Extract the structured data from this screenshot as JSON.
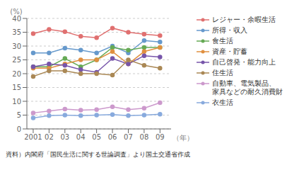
{
  "chart_data": {
    "type": "line",
    "x": [
      2001,
      2002,
      2003,
      2004,
      2005,
      2006,
      2007,
      2008,
      2009
    ],
    "xlim": [
      2000.6,
      2009.7
    ],
    "xticks": [
      2001,
      {
        "value": 2002,
        "label": "02"
      },
      {
        "value": 2003,
        "label": "03"
      },
      {
        "value": 2004,
        "label": "04"
      },
      {
        "value": 2005,
        "label": "05"
      },
      {
        "value": 2006,
        "label": "06"
      },
      {
        "value": 2007,
        "label": "07"
      },
      {
        "value": 2008,
        "label": "08"
      },
      {
        "value": 2009,
        "label": "09"
      }
    ],
    "xlabel": "（年）",
    "ylabel": "(%)",
    "ylim": [
      0,
      40
    ],
    "yticks": [
      0,
      5,
      10,
      15,
      20,
      25,
      30,
      35,
      40
    ],
    "grid": true,
    "legend": "right",
    "marker": "circle",
    "footnote": "資料）内閣府「国民生活に関する世論調査」より国土交通省作成",
    "series": [
      {
        "name": "レジャー・余暇生活",
        "color": "#e07070",
        "values": [
          34.5,
          36.0,
          35.2,
          33.5,
          33.0,
          36.5,
          35.0,
          34.3,
          33.8
        ]
      },
      {
        "name": "所得・収入",
        "color": "#6699cc",
        "values": [
          27.5,
          27.5,
          29.2,
          28.5,
          27.5,
          30.0,
          27.5,
          32.0,
          31.5
        ]
      },
      {
        "name": "食生活",
        "color": "#66aa55",
        "values": [
          22.5,
          22.5,
          25.5,
          22.5,
          25.0,
          29.5,
          28.5,
          29.5,
          29.5
        ]
      },
      {
        "name": "資産・貯蓄",
        "color": "#e09040",
        "values": [
          22.0,
          22.0,
          23.5,
          25.0,
          25.0,
          28.0,
          23.5,
          28.0,
          29.5
        ]
      },
      {
        "name": "自己啓発・能力向上",
        "color": "#7755aa",
        "values": [
          22.5,
          23.5,
          23.0,
          21.5,
          20.5,
          25.5,
          23.5,
          26.5,
          26.0
        ]
      },
      {
        "name": "住生活",
        "color": "#aa8855",
        "values": [
          19.0,
          21.0,
          21.0,
          20.0,
          20.0,
          19.5,
          25.0,
          23.0,
          22.0
        ]
      },
      {
        "name": "自動車、電気製品、\n家具などの耐久消費財",
        "color": "#cc99cc",
        "values": [
          5.8,
          6.5,
          7.2,
          6.8,
          7.0,
          8.0,
          7.0,
          7.5,
          9.5
        ]
      },
      {
        "name": "衣生活",
        "color": "#88aadd",
        "values": [
          4.0,
          4.8,
          5.0,
          4.8,
          5.0,
          5.2,
          4.8,
          5.0,
          5.3
        ]
      }
    ]
  }
}
